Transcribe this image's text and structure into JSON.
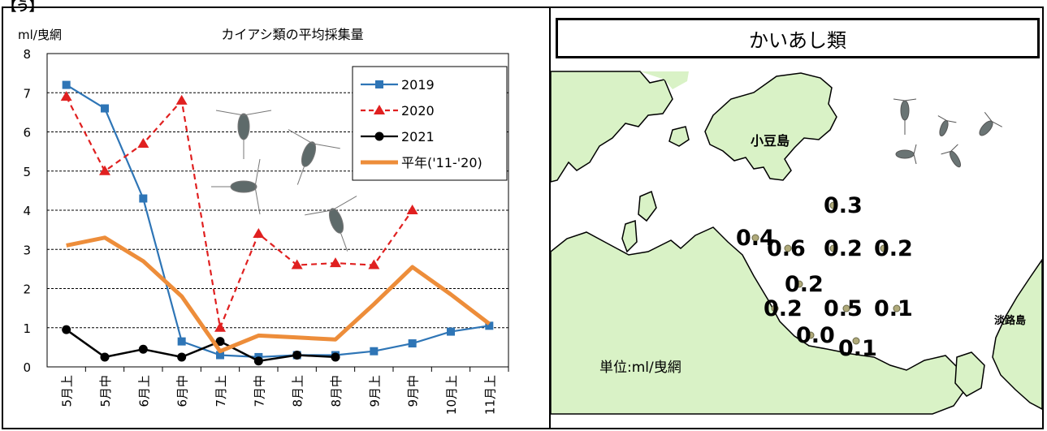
{
  "corner_mark": "【う】",
  "chart_data": {
    "type": "line",
    "title": "カイアシ類の平均採集量",
    "ylabel": "ml/曳網",
    "xlabel": "",
    "ylim": [
      0,
      8
    ],
    "yticks": [
      "0",
      "1",
      "2",
      "3",
      "4",
      "5",
      "6",
      "7",
      "8"
    ],
    "categories": [
      "5月上",
      "5月中",
      "6月上",
      "6月中",
      "7月上",
      "7月中",
      "8月上",
      "8月中",
      "9月上",
      "9月中",
      "10月上",
      "11月上"
    ],
    "grid": true,
    "legend_position": "top-right",
    "series": [
      {
        "name": "2019",
        "color": "#2e75b6",
        "marker": "square",
        "dash": "solid",
        "values": [
          7.2,
          6.6,
          4.3,
          0.65,
          0.3,
          0.25,
          0.3,
          0.3,
          0.4,
          0.6,
          0.9,
          1.05
        ]
      },
      {
        "name": "2020",
        "color": "#e02020",
        "marker": "triangle",
        "dash": "dashed",
        "values": [
          6.9,
          5.0,
          5.7,
          6.8,
          1.0,
          3.4,
          2.6,
          2.65,
          2.6,
          4.0,
          null,
          null
        ]
      },
      {
        "name": "2021",
        "color": "#000000",
        "marker": "circle",
        "dash": "solid",
        "values": [
          0.95,
          0.25,
          0.45,
          0.25,
          0.65,
          0.15,
          0.3,
          0.25,
          null,
          null,
          null,
          null
        ]
      },
      {
        "name": "平年('11-'20)",
        "color": "#ed8d3a",
        "marker": "none",
        "dash": "solid",
        "values": [
          3.1,
          3.3,
          2.7,
          1.8,
          0.4,
          0.8,
          0.75,
          0.7,
          1.6,
          2.55,
          1.85,
          1.1
        ]
      }
    ]
  },
  "map": {
    "title": "かいあし類",
    "island_shodoshima": "小豆島",
    "island_awaji": "淡路島",
    "unit_label": "単位:ml/曳網",
    "values": [
      "0.3",
      "0.4",
      "0.6",
      "0.2",
      "0.2",
      "0.2",
      "0.2",
      "0.5",
      "0.1",
      "0.0",
      "0.1"
    ],
    "land_color": "#d9f2c6",
    "station_color": "#b0aa7a"
  }
}
